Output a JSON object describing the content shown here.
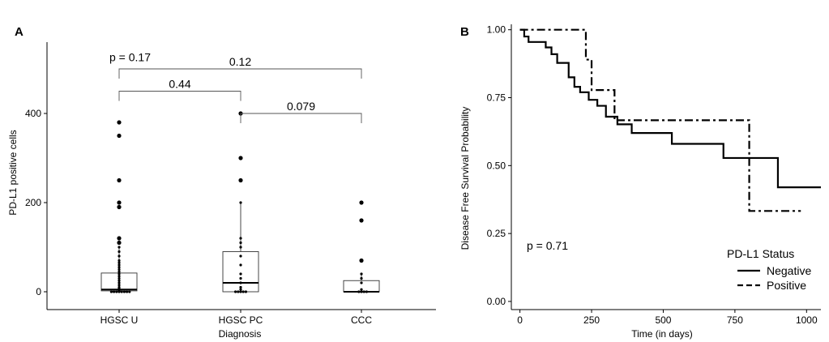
{
  "chart_data": [
    {
      "type": "box",
      "panel": "A",
      "xlabel": "Diagnosis",
      "ylabel": "PD-L1 positive cells",
      "ylim": [
        -40,
        560
      ],
      "yticks": [
        0,
        200,
        400
      ],
      "categories": [
        "HGSC U",
        "HGSC PC",
        "CCC"
      ],
      "boxes": [
        {
          "q1": 2,
          "median": 5,
          "q3": 42,
          "whisker_low": 0,
          "whisker_high": 100,
          "points": [
            0,
            0,
            0,
            0,
            0,
            0,
            0,
            0,
            2,
            4,
            5,
            8,
            10,
            15,
            20,
            25,
            30,
            35,
            40,
            45,
            50,
            55,
            60,
            65,
            70,
            80,
            90,
            100,
            110,
            120,
            190,
            200,
            250,
            350,
            380
          ]
        },
        {
          "q1": 0,
          "median": 20,
          "q3": 90,
          "whisker_low": 0,
          "whisker_high": 200,
          "points": [
            0,
            0,
            0,
            0,
            0,
            5,
            10,
            20,
            30,
            40,
            60,
            80,
            100,
            110,
            120,
            200,
            250,
            300,
            400
          ]
        },
        {
          "q1": 0,
          "median": 0,
          "q3": 25,
          "whisker_low": 0,
          "whisker_high": 40,
          "points": [
            0,
            0,
            0,
            0,
            5,
            20,
            30,
            40,
            70,
            160,
            200
          ]
        }
      ],
      "annotations": [
        {
          "text": "p = 0.17",
          "x": "HGSC U",
          "y": 525,
          "kind": "global"
        },
        {
          "text": "0.12",
          "from": "HGSC U",
          "to": "CCC",
          "y": 500
        },
        {
          "text": "0.44",
          "from": "HGSC U",
          "to": "HGSC PC",
          "y": 450
        },
        {
          "text": "0.079",
          "from": "HGSC PC",
          "to": "CCC",
          "y": 400
        }
      ]
    },
    {
      "type": "line",
      "panel": "B",
      "subtype": "kaplan-meier",
      "xlabel": "Time (in days)",
      "ylabel": "Disease Free Survival Probability",
      "xlim": [
        -30,
        1050
      ],
      "ylim": [
        -0.03,
        1.02
      ],
      "xticks": [
        0,
        250,
        500,
        750,
        1000
      ],
      "yticks": [
        0.0,
        0.25,
        0.5,
        0.75,
        1.0
      ],
      "ytick_labels": [
        "0.00",
        "0.25",
        "0.50",
        "0.75",
        "1.00"
      ],
      "annotation": "p = 0.71",
      "legend": {
        "title": "PD-L1 Status",
        "position": "bottom-right"
      },
      "series": [
        {
          "name": "Negative",
          "dash": "solid",
          "x": [
            0,
            15,
            30,
            90,
            110,
            130,
            170,
            190,
            210,
            240,
            270,
            300,
            340,
            390,
            530,
            710,
            900,
            1050
          ],
          "y": [
            1.0,
            0.975,
            0.955,
            0.935,
            0.91,
            0.878,
            0.825,
            0.79,
            0.77,
            0.742,
            0.72,
            0.68,
            0.652,
            0.62,
            0.58,
            0.528,
            0.42,
            0.42
          ]
        },
        {
          "name": "Positive",
          "dash": "dashdot",
          "x": [
            0,
            230,
            250,
            330,
            800,
            980
          ],
          "y": [
            1.0,
            0.89,
            0.778,
            0.667,
            0.333,
            0.333
          ]
        }
      ]
    }
  ]
}
